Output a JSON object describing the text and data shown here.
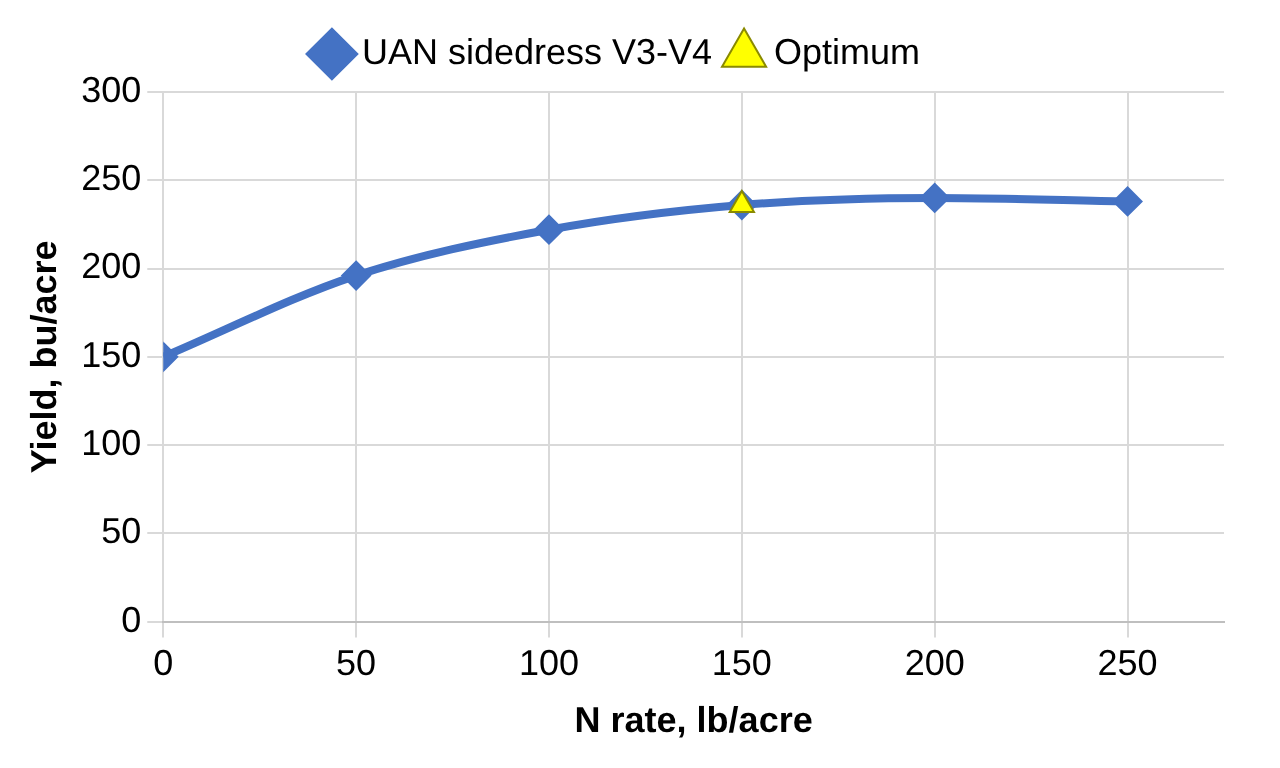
{
  "chart_data": {
    "type": "line",
    "xlabel": "N rate, lb/acre",
    "ylabel": "Yield, bu/acre",
    "xlim": [
      0,
      275
    ],
    "xticks": [
      0,
      50,
      100,
      150,
      200,
      250
    ],
    "ylim": [
      0,
      300
    ],
    "yticks": [
      0,
      50,
      100,
      150,
      200,
      250,
      300
    ],
    "grid": true,
    "legend": "top",
    "series": [
      {
        "name": "UAN sidedress V3-V4",
        "color": "#4472c4",
        "marker": "diamond",
        "x": [
          0,
          50,
          100,
          150,
          200,
          250
        ],
        "values": [
          150,
          196,
          222,
          236,
          240,
          238
        ]
      },
      {
        "name": "Optimum",
        "type": "scatter",
        "color": "#ffff00",
        "marker": "triangle",
        "x": [
          150
        ],
        "values": [
          236
        ]
      }
    ]
  }
}
